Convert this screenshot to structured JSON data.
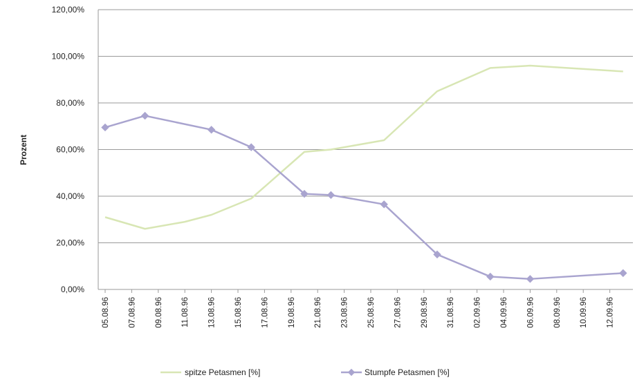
{
  "chart_data": {
    "type": "line",
    "ylabel": "Prozent",
    "xlabel": "",
    "ylim": [
      0,
      1.2
    ],
    "yticks": [
      "0,00%",
      "20,00%",
      "40,00%",
      "60,00%",
      "80,00%",
      "100,00%",
      "120,00%"
    ],
    "categories": [
      "05.08.96",
      "07.08.96",
      "09.08.96",
      "11.08.96",
      "13.08.96",
      "15.08.96",
      "17.08.96",
      "19.08.96",
      "21.08.96",
      "23.08.96",
      "25.08.96",
      "27.08.96",
      "29.08.96",
      "31.08.96",
      "02.09.96",
      "04.09.96",
      "06.09.96",
      "08.09.96",
      "10.09.96",
      "12.09.96"
    ],
    "grid": "horizontal",
    "legend_position": "bottom",
    "series": [
      {
        "name": "spitze Petasmen [%]",
        "color": "#d8e6b4",
        "marker": "none",
        "points": [
          {
            "x": "05.08.96",
            "y": 0.31
          },
          {
            "x": "08.08.96",
            "y": 0.26
          },
          {
            "x": "11.08.96",
            "y": 0.29
          },
          {
            "x": "13.08.96",
            "y": 0.32
          },
          {
            "x": "16.08.96",
            "y": 0.39
          },
          {
            "x": "20.08.96",
            "y": 0.59
          },
          {
            "x": "22.08.96",
            "y": 0.6
          },
          {
            "x": "26.08.96",
            "y": 0.64
          },
          {
            "x": "30.08.96",
            "y": 0.85
          },
          {
            "x": "03.09.96",
            "y": 0.95
          },
          {
            "x": "06.09.96",
            "y": 0.96
          },
          {
            "x": "13.09.96",
            "y": 0.935
          }
        ]
      },
      {
        "name": "Stumpfe Petasmen [%]",
        "color": "#a9a4cf",
        "marker": "diamond",
        "points": [
          {
            "x": "05.08.96",
            "y": 0.695
          },
          {
            "x": "08.08.96",
            "y": 0.745
          },
          {
            "x": "13.08.96",
            "y": 0.685
          },
          {
            "x": "16.08.96",
            "y": 0.61
          },
          {
            "x": "20.08.96",
            "y": 0.41
          },
          {
            "x": "22.08.96",
            "y": 0.405
          },
          {
            "x": "26.08.96",
            "y": 0.365
          },
          {
            "x": "30.08.96",
            "y": 0.15
          },
          {
            "x": "03.09.96",
            "y": 0.055
          },
          {
            "x": "06.09.96",
            "y": 0.045
          },
          {
            "x": "13.09.96",
            "y": 0.07
          }
        ]
      }
    ]
  }
}
